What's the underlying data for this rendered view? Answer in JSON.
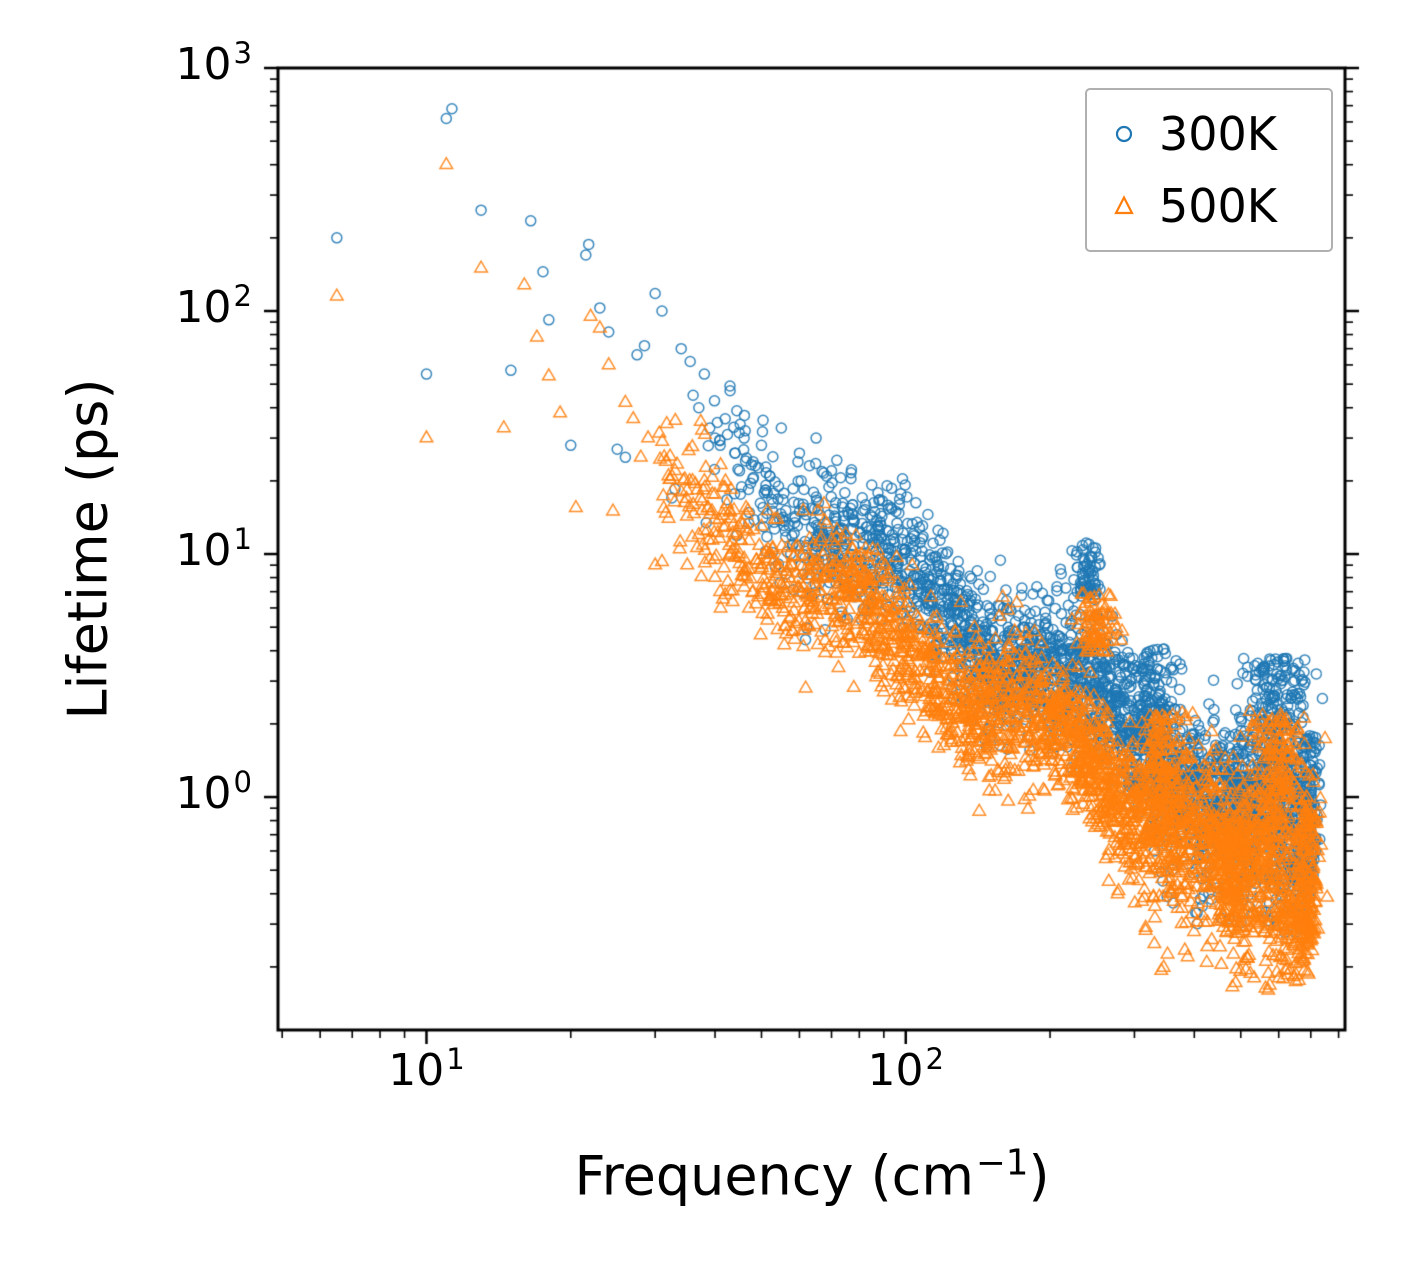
{
  "chart_data": {
    "type": "scatter",
    "title": "",
    "xlabel": "Frequency (cm⁻¹)",
    "xlabel_parts": {
      "prefix": "Frequency (cm",
      "sup": "−1",
      "suffix": ")"
    },
    "ylabel": "Lifetime (ps)",
    "x_scale": "log",
    "y_scale": "log",
    "xlim": [
      4.9,
      825
    ],
    "ylim": [
      0.11,
      1000
    ],
    "grid": false,
    "legend_position": "top-right",
    "x_major_ticks": [
      {
        "value": 10,
        "label": "10^1"
      },
      {
        "value": 100,
        "label": "10^2"
      }
    ],
    "y_major_ticks": [
      {
        "value": 1,
        "label": "10^0"
      },
      {
        "value": 10,
        "label": "10^1"
      },
      {
        "value": 100,
        "label": "10^2"
      },
      {
        "value": 1000,
        "label": "10^3"
      }
    ],
    "series": [
      {
        "name": "300K",
        "color": "#1f77b4",
        "marker": "circle",
        "sparse_points": [
          [
            6.5,
            200
          ],
          [
            10,
            55
          ],
          [
            11,
            620
          ],
          [
            11.3,
            680
          ],
          [
            13,
            260
          ],
          [
            15,
            57
          ],
          [
            16.5,
            235
          ],
          [
            17.5,
            145
          ],
          [
            18,
            92
          ],
          [
            20,
            28
          ],
          [
            21.5,
            170
          ],
          [
            21.8,
            188
          ],
          [
            23,
            103
          ],
          [
            24,
            82
          ],
          [
            25,
            27
          ],
          [
            26,
            25
          ],
          [
            27.5,
            66
          ],
          [
            28.5,
            72
          ],
          [
            30,
            118
          ],
          [
            31,
            100
          ],
          [
            32.5,
            17
          ],
          [
            33,
            18.5
          ],
          [
            34,
            70
          ],
          [
            35.5,
            62
          ],
          [
            36,
            45
          ],
          [
            37,
            40
          ],
          [
            38,
            55
          ],
          [
            39,
            33
          ],
          [
            40,
            30
          ],
          [
            41,
            28
          ],
          [
            42,
            36
          ],
          [
            43,
            47
          ],
          [
            44,
            26
          ],
          [
            45,
            22
          ],
          [
            46,
            30
          ],
          [
            48,
            24
          ],
          [
            50,
            28
          ],
          [
            52,
            21
          ],
          [
            55,
            33
          ],
          [
            60,
            26
          ],
          [
            65,
            30
          ],
          [
            70,
            22
          ]
        ],
        "dense": {
          "seed": 42,
          "n": 2600,
          "f_min": 38,
          "f_max": 705,
          "amp_at_100": 7.5,
          "exponent": 1.28,
          "sigma_dec": 0.14,
          "mod_amp_dec": 0.08,
          "mod_freq": 7.0,
          "mod_phase": 1.1,
          "f_bias_pow": 0.6,
          "tail_f_start": 260,
          "tail_prob": 0.45,
          "tail_max_dec": 0.75,
          "t_floor": 0.27
        },
        "clusters": [
          {
            "f_center": 240,
            "f_sigma_dec": 0.015,
            "t_center": 8.5,
            "t_half_dec": 0.12,
            "n": 70
          },
          {
            "f_center": 330,
            "f_sigma_dec": 0.025,
            "t_center": 2.6,
            "t_half_dec": 0.2,
            "n": 130
          },
          {
            "f_center": 600,
            "f_sigma_dec": 0.035,
            "t_center": 2.0,
            "t_half_dec": 0.27,
            "n": 240
          },
          {
            "f_center": 500,
            "f_sigma_dec": 0.02,
            "t_center": 0.75,
            "t_half_dec": 0.22,
            "n": 110
          },
          {
            "f_center": 690,
            "f_sigma_dec": 0.012,
            "t_center": 0.9,
            "t_half_dec": 0.3,
            "n": 130
          }
        ]
      },
      {
        "name": "500K",
        "color": "#ff7f0e",
        "marker": "triangle",
        "sparse_points": [
          [
            6.5,
            115
          ],
          [
            10,
            30
          ],
          [
            11,
            400
          ],
          [
            13,
            150
          ],
          [
            14.5,
            33
          ],
          [
            16,
            128
          ],
          [
            17,
            78
          ],
          [
            18,
            54
          ],
          [
            19,
            38
          ],
          [
            20.5,
            15.5
          ],
          [
            22,
            95
          ],
          [
            23,
            85
          ],
          [
            24,
            60
          ],
          [
            24.5,
            15
          ],
          [
            26,
            42
          ],
          [
            27,
            36
          ],
          [
            28,
            25
          ],
          [
            29,
            30
          ],
          [
            30,
            9
          ],
          [
            31,
            9.3
          ],
          [
            32,
            14
          ],
          [
            33,
            22
          ],
          [
            34,
            18
          ],
          [
            35,
            9
          ],
          [
            36,
            16
          ],
          [
            37,
            12
          ],
          [
            38,
            20
          ],
          [
            39,
            9.5
          ],
          [
            40,
            8
          ],
          [
            41,
            7
          ],
          [
            42,
            6.8
          ],
          [
            43,
            15
          ],
          [
            44,
            12
          ],
          [
            45,
            10
          ],
          [
            46,
            8.5
          ],
          [
            48,
            7
          ],
          [
            50,
            13
          ],
          [
            52,
            10
          ],
          [
            55,
            8.5
          ],
          [
            60,
            7
          ],
          [
            65,
            9
          ],
          [
            70,
            6.5
          ]
        ],
        "dense": {
          "seed": 7,
          "n": 2600,
          "f_min": 30,
          "f_max": 705,
          "amp_at_100": 4.2,
          "exponent": 1.28,
          "sigma_dec": 0.14,
          "mod_amp_dec": 0.08,
          "mod_freq": 7.0,
          "mod_phase": 2.3,
          "f_bias_pow": 0.6,
          "tail_f_start": 240,
          "tail_prob": 0.5,
          "tail_max_dec": 0.85,
          "t_floor": 0.16
        },
        "clusters": [
          {
            "f_center": 250,
            "f_sigma_dec": 0.02,
            "t_center": 5.2,
            "t_half_dec": 0.12,
            "n": 80
          },
          {
            "f_center": 345,
            "f_sigma_dec": 0.025,
            "t_center": 1.4,
            "t_half_dec": 0.2,
            "n": 120
          },
          {
            "f_center": 600,
            "f_sigma_dec": 0.035,
            "t_center": 1.15,
            "t_half_dec": 0.3,
            "n": 240
          },
          {
            "f_center": 480,
            "f_sigma_dec": 0.02,
            "t_center": 0.45,
            "t_half_dec": 0.22,
            "n": 110
          },
          {
            "f_center": 690,
            "f_sigma_dec": 0.012,
            "t_center": 0.5,
            "t_half_dec": 0.3,
            "n": 130
          }
        ]
      }
    ]
  }
}
